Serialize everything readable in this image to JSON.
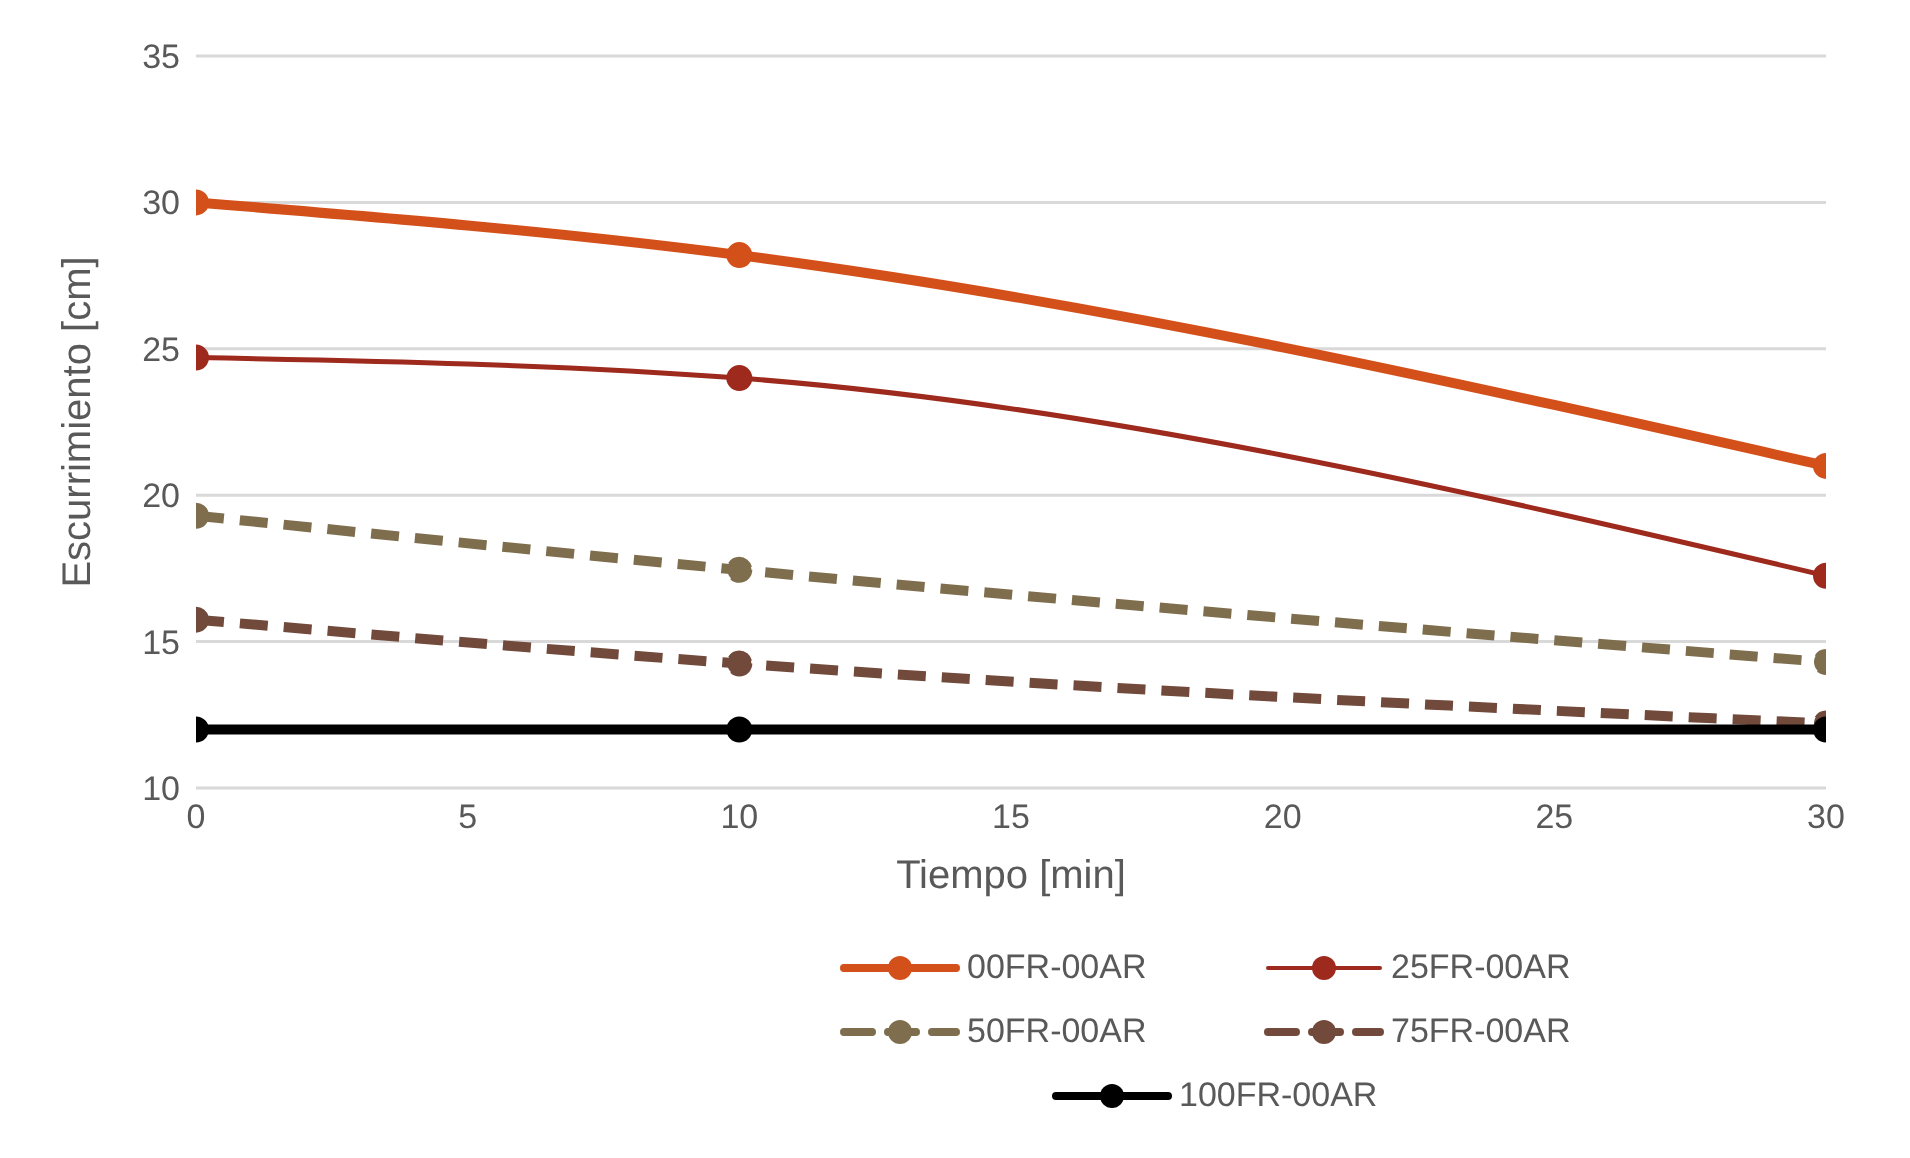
{
  "chart_data": {
    "type": "line",
    "xlabel": "Tiempo [min]",
    "ylabel": "Escurrimiento [cm]",
    "x": [
      0,
      10,
      30
    ],
    "xlim": [
      0,
      30
    ],
    "xticks": [
      0,
      5,
      10,
      15,
      20,
      25,
      30
    ],
    "ylim": [
      10,
      35
    ],
    "yticks": [
      10,
      15,
      20,
      25,
      30,
      35
    ],
    "grid": "y",
    "legend": "bottom",
    "marker": "circle",
    "series": [
      {
        "name": "00FR-00AR",
        "color": "#d4501a",
        "values": [
          30,
          28.2,
          21.0
        ],
        "line_style": "solid"
      },
      {
        "name": "25FR-00AR",
        "color": "#9e2a1e",
        "values": [
          24.7,
          24.0,
          17.25
        ],
        "line_style": "solid"
      },
      {
        "name": "50FR-00AR",
        "color": "#7f6e4e",
        "values": [
          19.3,
          17.45,
          14.3
        ],
        "line_style": "dashed"
      },
      {
        "name": "75FR-00AR",
        "color": "#714a3c",
        "values": [
          15.75,
          14.25,
          12.2
        ],
        "line_style": "dashed"
      },
      {
        "name": "100FR-00AR",
        "color": "#000000",
        "values": [
          12,
          12,
          12
        ],
        "line_style": "solid"
      }
    ]
  }
}
